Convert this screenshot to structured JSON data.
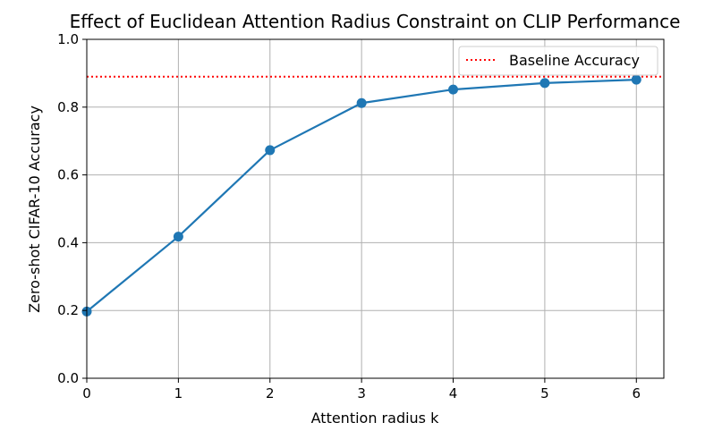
{
  "chart_data": {
    "type": "line",
    "title": "Effect of Euclidean Attention Radius Constraint on CLIP Performance",
    "xlabel": "Attention radius k",
    "ylabel": "Zero-shot CIFAR-10 Accuracy",
    "xlim": [
      0,
      6.3
    ],
    "ylim": [
      0.0,
      1.0
    ],
    "x_ticks": [
      0,
      1,
      2,
      3,
      4,
      5,
      6
    ],
    "x_tick_labels": [
      "0",
      "1",
      "2",
      "3",
      "4",
      "5",
      "6"
    ],
    "y_ticks": [
      0.0,
      0.2,
      0.4,
      0.6,
      0.8,
      1.0
    ],
    "y_tick_labels": [
      "0.0",
      "0.2",
      "0.4",
      "0.6",
      "0.8",
      "1.0"
    ],
    "grid": true,
    "legend_position": "top-right",
    "series": [
      {
        "x": [
          0,
          1,
          2,
          3,
          4,
          5,
          6
        ],
        "y": [
          0.197,
          0.418,
          0.673,
          0.812,
          0.852,
          0.871,
          0.881
        ],
        "color": "#1f77b4",
        "marker": "circle",
        "line_style": "solid"
      }
    ],
    "reference_lines": [
      {
        "name": "Baseline Accuracy",
        "orientation": "horizontal",
        "y": 0.89,
        "color": "#ff0000",
        "line_style": "dotted"
      }
    ]
  }
}
